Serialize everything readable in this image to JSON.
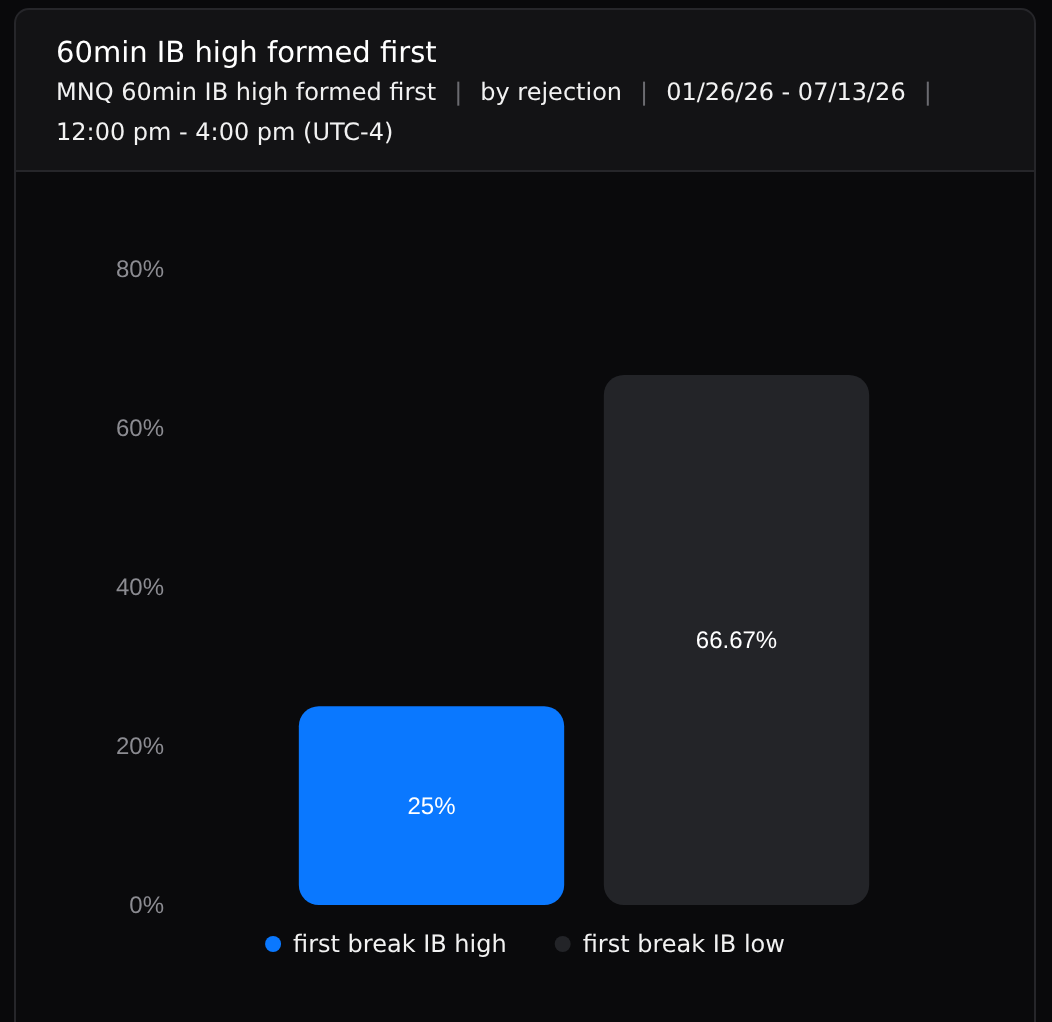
{
  "chart_data": {
    "type": "bar",
    "title": "60min IB high formed first",
    "subtitle": "MNQ 60min IB high formed first | by rejection | 01/26/26 - 07/13/26 | 12:00 pm - 4:00 pm (UTC-4)",
    "categories": [
      null,
      null
    ],
    "stacked": true,
    "series": [
      {
        "name": "first break IB high",
        "color": "#0a78ff",
        "values": [
          25,
          null
        ],
        "value_labels": [
          "25%",
          null
        ]
      },
      {
        "name": "first break IB low",
        "color": "#232428",
        "values": [
          null,
          66.67
        ],
        "value_labels": [
          null,
          "66.67%"
        ]
      }
    ],
    "ylim": [
      0,
      80
    ],
    "yticks": [
      {
        "value": 0,
        "label": "0%"
      },
      {
        "value": 20,
        "label": "20%"
      },
      {
        "value": 40,
        "label": "40%"
      },
      {
        "value": 60,
        "label": "60%"
      },
      {
        "value": 80,
        "label": "80%"
      }
    ],
    "legend": "bottom"
  }
}
